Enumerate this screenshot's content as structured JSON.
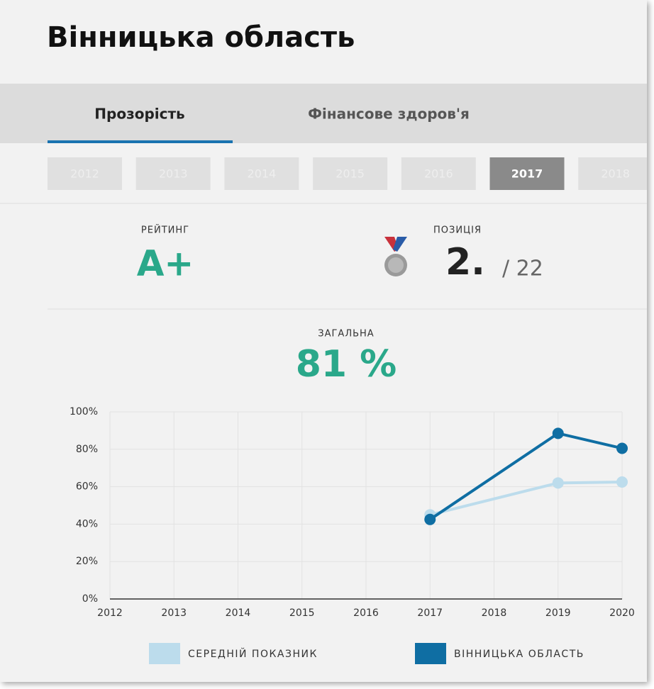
{
  "header": {
    "title": "Вінницька область"
  },
  "tabs": [
    "Прозорість",
    "Фінансове здоров'я"
  ],
  "years": [
    "2012",
    "2013",
    "2014",
    "2015",
    "2016",
    "2017",
    "2018"
  ],
  "rating": {
    "label": "РЕЙТИНГ",
    "value": "A+"
  },
  "position": {
    "label": "ПОЗИЦІЯ",
    "value": "2.",
    "total": "/ 22"
  },
  "overall": {
    "label": "ЗАГАЛЬНА",
    "value": "81 %"
  },
  "chart_data": {
    "type": "line",
    "x": [
      2017,
      2019,
      2020
    ],
    "series": [
      {
        "name": "СЕРЕДНІЙ ПОКАЗНИК",
        "color": "#bcdcec",
        "values": [
          45,
          62,
          62.5
        ]
      },
      {
        "name": "ВІННИЦЬКА ОБЛАСТЬ",
        "color": "#0f6ea3",
        "values": [
          42.5,
          88.5,
          80.5
        ]
      }
    ],
    "xlim": [
      2012,
      2020
    ],
    "xticks": [
      2012,
      2013,
      2014,
      2015,
      2016,
      2017,
      2018,
      2019,
      2020
    ],
    "ylim": [
      0,
      100
    ],
    "yticks": [
      {
        "value": 0,
        "label": "0%"
      },
      {
        "value": 20,
        "label": "20%"
      },
      {
        "value": 40,
        "label": "40%"
      },
      {
        "value": 60,
        "label": "60%"
      },
      {
        "value": 80,
        "label": "80%"
      },
      {
        "value": 100,
        "label": "100%"
      }
    ],
    "grid": true
  }
}
